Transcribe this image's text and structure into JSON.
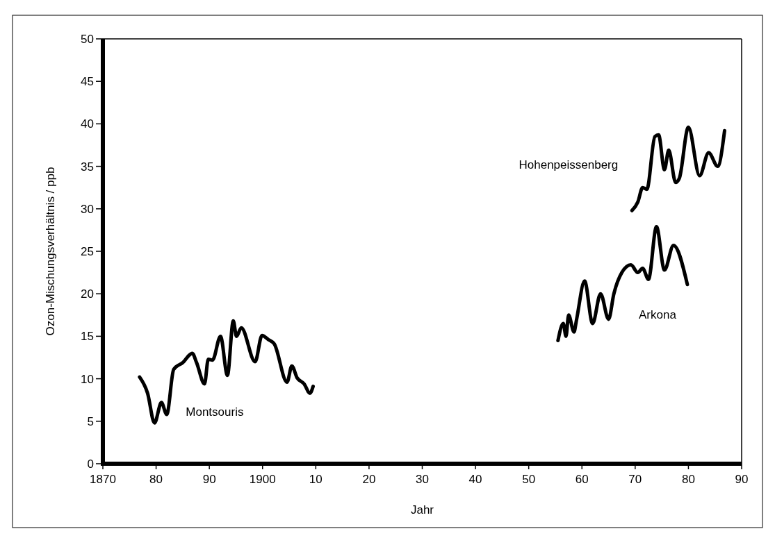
{
  "chart_data": {
    "type": "line",
    "xlabel": "Jahr",
    "ylabel": "Ozon-Mischungsverhältnis / ppb",
    "xlim": [
      1870,
      1990
    ],
    "ylim": [
      0,
      50
    ],
    "xticks": [
      1870,
      {
        "value": 1880,
        "label": "80"
      },
      {
        "value": 1890,
        "label": "90"
      },
      1900,
      {
        "value": 1910,
        "label": "10"
      },
      {
        "value": 1920,
        "label": "20"
      },
      {
        "value": 1930,
        "label": "30"
      },
      {
        "value": 1940,
        "label": "40"
      },
      {
        "value": 1950,
        "label": "50"
      },
      {
        "value": 1960,
        "label": "60"
      },
      {
        "value": 1970,
        "label": "70"
      },
      {
        "value": 1980,
        "label": "80"
      },
      {
        "value": 1990,
        "label": "90"
      }
    ],
    "yticks": [
      0,
      5,
      10,
      15,
      20,
      25,
      30,
      35,
      40,
      45,
      50
    ],
    "grid": false,
    "legend": false,
    "marker": "none",
    "line_style": "solid",
    "series": [
      {
        "name": "Montsouris",
        "color": "#000000",
        "x": [
          1876.9,
          1878.4,
          1879.7,
          1881,
          1882,
          1883.3,
          1885,
          1886.8,
          1887.6,
          1889.1,
          1889.8,
          1890.6,
          1892.1,
          1893.4,
          1894.5,
          1895.1,
          1896,
          1898.6,
          1899.9,
          1901.1,
          1902.2,
          1904.6,
          1905.5,
          1906.5,
          1907.8,
          1908.9,
          1909.5
        ],
        "values": [
          10.2,
          8.3,
          4.8,
          7.2,
          5.8,
          11.1,
          11.9,
          13,
          11.9,
          9.4,
          12.3,
          12.2,
          15,
          10.4,
          16.8,
          15,
          16,
          12,
          15.1,
          14.6,
          14.1,
          9.6,
          11.5,
          10.1,
          9.4,
          8.3,
          9.1
        ]
      },
      {
        "name": "Arkona",
        "color": "#000000",
        "x": [
          1955.5,
          1956.5,
          1957,
          1957.5,
          1958.5,
          1959,
          1960.5,
          1962,
          1963.5,
          1965,
          1966,
          1967.5,
          1969.2,
          1970.5,
          1971.4,
          1972.5,
          1974,
          1975.5,
          1977.2,
          1979.8
        ],
        "values": [
          14.5,
          16.5,
          15,
          17.5,
          15.5,
          17,
          21.5,
          16.5,
          20,
          17,
          20,
          22.5,
          23.4,
          22.5,
          23,
          21.7,
          27.9,
          22.8,
          25.7,
          21.1
        ]
      },
      {
        "name": "Hohenpeissenberg",
        "color": "#000000",
        "x": [
          1969.4,
          1970.5,
          1971.4,
          1972.2,
          1973.7,
          1974.4,
          1975.5,
          1976.3,
          1977.6,
          1978.3,
          1980,
          1982.1,
          1983.8,
          1985.5,
          1986.8
        ],
        "values": [
          29.8,
          30.8,
          32.5,
          32.3,
          38.5,
          38.7,
          34.6,
          36.9,
          33.1,
          33.6,
          39.6,
          33.9,
          36.6,
          35,
          39.2
        ]
      }
    ]
  }
}
